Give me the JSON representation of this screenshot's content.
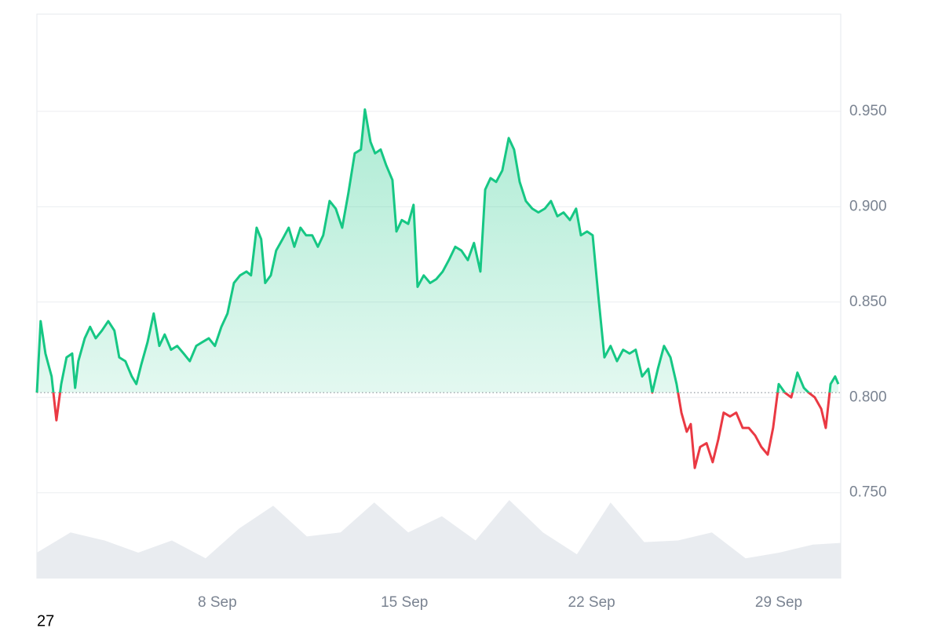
{
  "chart_data": {
    "type": "line",
    "x": [
      1.25,
      1.39,
      1.57,
      1.8,
      1.98,
      2.16,
      2.36,
      2.57,
      2.68,
      2.8,
      3.04,
      3.24,
      3.45,
      3.68,
      3.92,
      4.15,
      4.33,
      4.56,
      4.8,
      4.97,
      5.15,
      5.39,
      5.62,
      5.83,
      6.03,
      6.27,
      6.5,
      6.74,
      6.97,
      7.21,
      7.44,
      7.68,
      7.91,
      8.15,
      8.38,
      8.62,
      8.85,
      9.09,
      9.26,
      9.47,
      9.64,
      9.79,
      10.0,
      10.2,
      10.44,
      10.67,
      10.88,
      11.11,
      11.32,
      11.55,
      11.76,
      11.96,
      12.2,
      12.43,
      12.67,
      12.9,
      13.14,
      13.37,
      13.52,
      13.73,
      13.9,
      14.11,
      14.31,
      14.55,
      14.7,
      14.9,
      15.14,
      15.34,
      15.49,
      15.72,
      15.96,
      16.19,
      16.43,
      16.66,
      16.9,
      17.13,
      17.37,
      17.6,
      17.84,
      18.02,
      18.22,
      18.43,
      18.66,
      18.9,
      19.1,
      19.31,
      19.54,
      19.78,
      20.01,
      20.25,
      20.48,
      20.72,
      20.95,
      21.19,
      21.42,
      21.6,
      21.83,
      22.04,
      22.24,
      22.48,
      22.71,
      22.95,
      23.18,
      23.42,
      23.65,
      23.89,
      24.12,
      24.27,
      24.48,
      24.71,
      24.95,
      25.18,
      25.36,
      25.56,
      25.71,
      25.86,
      26.06,
      26.3,
      26.53,
      26.74,
      26.94,
      27.18,
      27.41,
      27.65,
      27.88,
      28.12,
      28.35,
      28.59,
      28.79,
      29.0,
      29.23,
      29.47,
      29.7,
      29.94,
      30.12,
      30.35,
      30.59,
      30.76,
      30.94,
      31.11,
      31.23
    ],
    "values": [
      0.8025,
      0.84,
      0.823,
      0.811,
      0.788,
      0.807,
      0.821,
      0.823,
      0.805,
      0.819,
      0.831,
      0.837,
      0.831,
      0.835,
      0.84,
      0.835,
      0.821,
      0.819,
      0.811,
      0.807,
      0.817,
      0.829,
      0.844,
      0.827,
      0.833,
      0.825,
      0.827,
      0.823,
      0.819,
      0.827,
      0.829,
      0.831,
      0.827,
      0.837,
      0.844,
      0.86,
      0.864,
      0.866,
      0.864,
      0.889,
      0.883,
      0.86,
      0.864,
      0.877,
      0.883,
      0.889,
      0.879,
      0.889,
      0.885,
      0.885,
      0.879,
      0.885,
      0.903,
      0.899,
      0.889,
      0.907,
      0.928,
      0.93,
      0.951,
      0.934,
      0.928,
      0.93,
      0.922,
      0.914,
      0.887,
      0.893,
      0.891,
      0.901,
      0.858,
      0.864,
      0.86,
      0.862,
      0.866,
      0.872,
      0.879,
      0.877,
      0.872,
      0.881,
      0.866,
      0.909,
      0.915,
      0.913,
      0.919,
      0.936,
      0.93,
      0.913,
      0.903,
      0.899,
      0.897,
      0.899,
      0.903,
      0.895,
      0.897,
      0.893,
      0.899,
      0.885,
      0.887,
      0.885,
      0.855,
      0.821,
      0.827,
      0.819,
      0.825,
      0.823,
      0.825,
      0.811,
      0.815,
      0.8025,
      0.815,
      0.827,
      0.821,
      0.807,
      0.792,
      0.782,
      0.786,
      0.763,
      0.774,
      0.776,
      0.766,
      0.778,
      0.792,
      0.79,
      0.792,
      0.784,
      0.784,
      0.78,
      0.774,
      0.77,
      0.784,
      0.807,
      0.8025,
      0.8,
      0.813,
      0.805,
      0.8025,
      0.8,
      0.794,
      0.784,
      0.807,
      0.811,
      0.807
    ],
    "baseline": 0.8025,
    "color_up": "#16c784",
    "color_down": "#ea3943",
    "volume": {
      "x": [
        1.25,
        2.51,
        3.78,
        5.04,
        6.3,
        7.56,
        8.82,
        10.09,
        11.35,
        12.61,
        13.87,
        15.14,
        16.4,
        17.66,
        18.92,
        20.18,
        21.45,
        22.71,
        23.97,
        25.23,
        26.5,
        27.76,
        29.02,
        30.28,
        31.31
      ],
      "values": [
        32,
        57,
        47,
        32,
        47,
        25,
        62,
        90,
        52,
        57,
        94,
        57,
        77,
        47,
        97,
        57,
        30,
        94,
        45,
        47,
        57,
        25,
        32,
        42,
        44
      ],
      "color": "#e9ecf0"
    },
    "xlim": [
      1.25,
      31.32
    ],
    "xticks": [
      {
        "value": 8,
        "label": "8 Sep"
      },
      {
        "value": 15,
        "label": "15 Sep"
      },
      {
        "value": 22,
        "label": "22 Sep"
      },
      {
        "value": 29,
        "label": "29 Sep"
      }
    ],
    "ylim": [
      0.705,
      1.001
    ],
    "yticks": [
      {
        "value": 0.75,
        "label": "0.750"
      },
      {
        "value": 0.8,
        "label": "0.800"
      },
      {
        "value": 0.85,
        "label": "0.850"
      },
      {
        "value": 0.9,
        "label": "0.900"
      },
      {
        "value": 0.95,
        "label": "0.950"
      }
    ],
    "grid": true,
    "note": "27"
  }
}
